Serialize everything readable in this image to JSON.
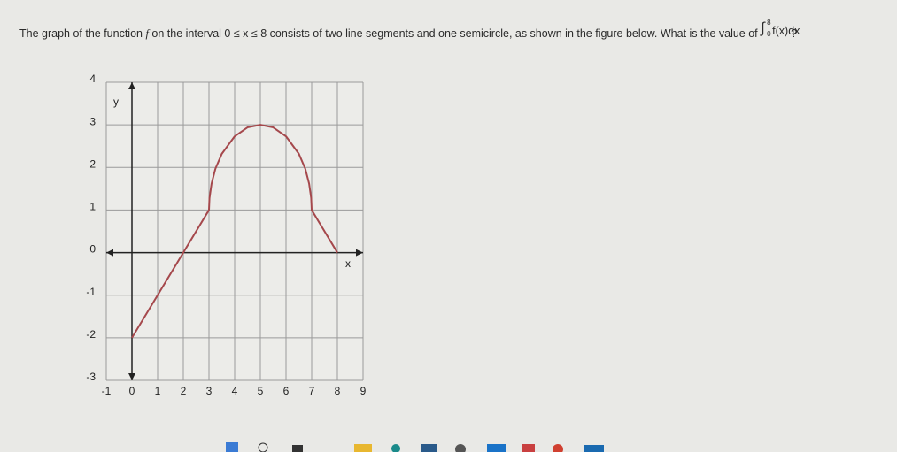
{
  "question": {
    "text_start": "The graph of the function ",
    "function_name": "f",
    "text_interval_intro": " on the interval ",
    "interval": "0 ≤ x ≤ 8",
    "text_end": " consists of two line segments and one semicircle, as shown in the figure below. What is the value of ",
    "integral_sign": "∫",
    "integral_lower": "0",
    "integral_upper": "8",
    "integrand": "f(x)dx",
    "question_mark": "?"
  },
  "chart_data": {
    "type": "line",
    "color": "#a5484c",
    "grid": true,
    "x_label": "x",
    "y_label": "y",
    "x": [
      0,
      3,
      3.02,
      3.1,
      3.25,
      3.5,
      4,
      4.5,
      5,
      5.5,
      6,
      6.5,
      6.75,
      6.9,
      6.98,
      7,
      8
    ],
    "values": [
      -2,
      1,
      1.28,
      1.62,
      1.97,
      2.32,
      2.73,
      2.94,
      3,
      2.94,
      2.73,
      2.32,
      1.97,
      1.62,
      1.28,
      1,
      0
    ],
    "xlim": [
      -1,
      9
    ],
    "ylim": [
      -3,
      4
    ],
    "xticks": [
      -1,
      0,
      1,
      2,
      3,
      4,
      5,
      6,
      7,
      8,
      9
    ],
    "yticks": [
      -3,
      -2,
      -1,
      0,
      1,
      2,
      3,
      4
    ]
  }
}
